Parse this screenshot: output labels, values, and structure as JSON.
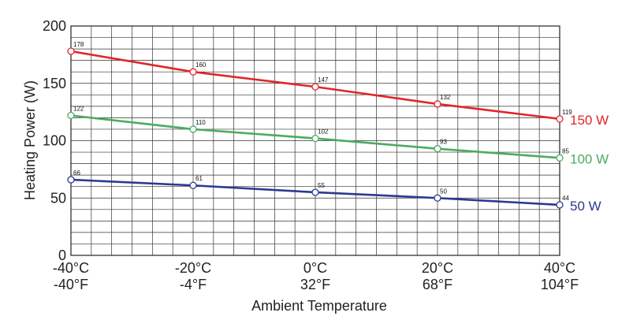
{
  "chart_data": {
    "type": "line",
    "title": "",
    "xlabel": "Ambient Temperature",
    "ylabel": "Heating Power (W)",
    "ylim": [
      0,
      200
    ],
    "y_ticks": [
      0,
      50,
      100,
      150,
      200
    ],
    "categories": [
      {
        "c": "-40°C",
        "f": "-40°F"
      },
      {
        "c": "-20°C",
        "f": "-4°F"
      },
      {
        "c": "0°C",
        "f": "32°F"
      },
      {
        "c": "20°C",
        "f": "68°F"
      },
      {
        "c": "40°C",
        "f": "104°F"
      }
    ],
    "grid": true,
    "series": [
      {
        "name": "150 W",
        "color": "#e0262b",
        "values": [
          178,
          160,
          147,
          132,
          119
        ]
      },
      {
        "name": "100 W",
        "color": "#4daa62",
        "values": [
          122,
          110,
          102,
          93,
          85
        ]
      },
      {
        "name": "50 W",
        "color": "#2b3a8f",
        "values": [
          66,
          61,
          55,
          50,
          44
        ]
      }
    ]
  }
}
